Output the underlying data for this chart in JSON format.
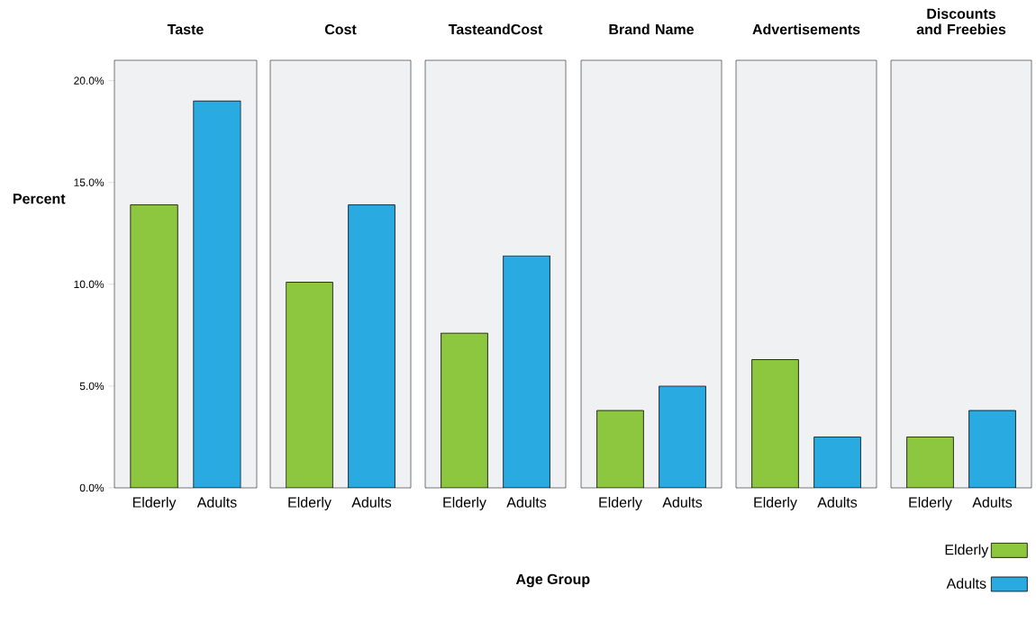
{
  "chart_data": [
    {
      "type": "bar",
      "title": "Taste",
      "ylabel": "Percent",
      "categories": [
        "Elderly",
        "Adults"
      ],
      "series": [
        {
          "color": "#8dc63f",
          "values": [
            13.9,
            null
          ]
        },
        {
          "color": "#29abe2",
          "values": [
            null,
            19.0
          ]
        }
      ],
      "ylim": [
        0,
        21
      ],
      "yticks": [
        {
          "value": 0,
          "label": "0.0%"
        },
        {
          "value": 5,
          "label": "5.0%"
        },
        {
          "value": 10,
          "label": "10.0%"
        },
        {
          "value": 15,
          "label": "15.0%"
        },
        {
          "value": 20,
          "label": "20.0%"
        }
      ]
    },
    {
      "type": "bar",
      "title": "Cost",
      "categories": [
        "Elderly",
        "Adults"
      ],
      "series": [
        {
          "color": "#8dc63f",
          "values": [
            10.1,
            null
          ]
        },
        {
          "color": "#29abe2",
          "values": [
            null,
            13.9
          ]
        }
      ],
      "ylim": [
        0,
        21
      ],
      "tick_labels": "x"
    },
    {
      "type": "bar",
      "title": "TasteandCost",
      "categories": [
        "Elderly",
        "Adults"
      ],
      "series": [
        {
          "color": "#8dc63f",
          "values": [
            7.6,
            null
          ]
        },
        {
          "color": "#29abe2",
          "values": [
            null,
            11.4
          ]
        }
      ],
      "ylim": [
        0,
        21
      ],
      "tick_labels": "x"
    },
    {
      "type": "bar",
      "title": "Brand Name",
      "xlabel": "Age Group",
      "categories": [
        "Elderly",
        "Adults"
      ],
      "series": [
        {
          "color": "#8dc63f",
          "values": [
            3.8,
            null
          ]
        },
        {
          "color": "#29abe2",
          "values": [
            null,
            5.0
          ]
        }
      ],
      "ylim": [
        0,
        21
      ],
      "tick_labels": "x"
    },
    {
      "type": "bar",
      "title": "Advertisements",
      "categories": [
        "Elderly",
        "Adults"
      ],
      "series": [
        {
          "color": "#8dc63f",
          "values": [
            6.3,
            null
          ]
        },
        {
          "color": "#29abe2",
          "values": [
            null,
            2.5
          ]
        }
      ],
      "ylim": [
        0,
        21
      ],
      "tick_labels": "x"
    },
    {
      "type": "bar",
      "title": "Discounts and Freebies",
      "categories": [
        "Elderly",
        "Adults"
      ],
      "series": [
        {
          "name": "Elderly",
          "color": "#8dc63f",
          "values": [
            2.5,
            null
          ]
        },
        {
          "name": "Adults",
          "color": "#29abe2",
          "values": [
            null,
            3.8
          ]
        }
      ],
      "ylim": [
        0,
        21
      ],
      "tick_labels": "x",
      "legend": "bottom right"
    }
  ]
}
